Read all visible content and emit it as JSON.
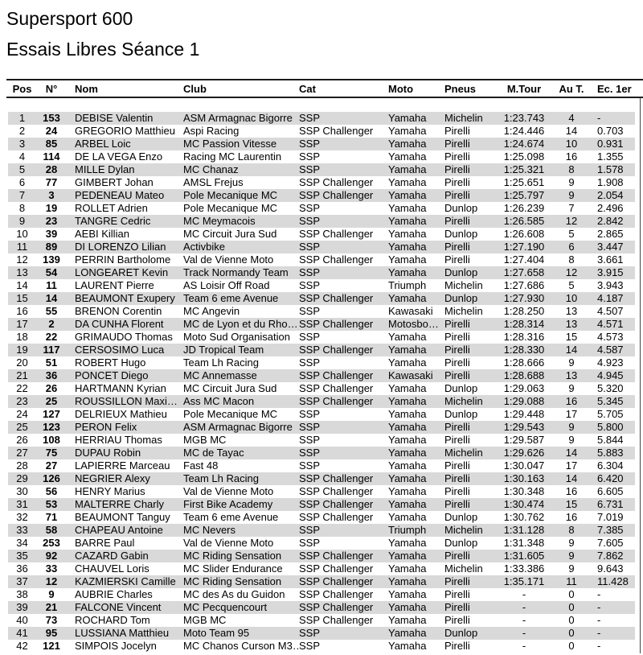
{
  "header": {
    "title_line1": "Supersport 600",
    "title_line2": "Essais Libres Séance 1"
  },
  "colors": {
    "stripe_gray": "#d9d9d9",
    "rule_black": "#1c1c1c"
  },
  "table": {
    "columns": [
      "Pos",
      "N°",
      "Nom",
      "Club",
      "Cat",
      "Moto",
      "Pneus",
      "M.Tour",
      "Au T.",
      "Ec. 1er"
    ],
    "rows": [
      {
        "pos": "1",
        "num": "153",
        "nom": "DEBISE Valentin",
        "club": "ASM Armagnac Bigorre",
        "cat": "SSP",
        "moto": "Yamaha",
        "pneus": "Michelin",
        "mtour": "1:23.743",
        "aut": "4",
        "ec": "-"
      },
      {
        "pos": "2",
        "num": "24",
        "nom": "GREGORIO Matthieu",
        "club": "Aspi Racing",
        "cat": "SSP Challenger",
        "moto": "Yamaha",
        "pneus": "Pirelli",
        "mtour": "1:24.446",
        "aut": "14",
        "ec": "0.703"
      },
      {
        "pos": "3",
        "num": "85",
        "nom": "ARBEL Loic",
        "club": "MC Passion Vitesse",
        "cat": "SSP",
        "moto": "Yamaha",
        "pneus": "Pirelli",
        "mtour": "1:24.674",
        "aut": "10",
        "ec": "0.931"
      },
      {
        "pos": "4",
        "num": "114",
        "nom": "DE LA VEGA Enzo",
        "club": "Racing MC Laurentin",
        "cat": "SSP",
        "moto": "Yamaha",
        "pneus": "Pirelli",
        "mtour": "1:25.098",
        "aut": "16",
        "ec": "1.355"
      },
      {
        "pos": "5",
        "num": "28",
        "nom": "MILLE Dylan",
        "club": "MC Chanaz",
        "cat": "SSP",
        "moto": "Yamaha",
        "pneus": "Pirelli",
        "mtour": "1:25.321",
        "aut": "8",
        "ec": "1.578"
      },
      {
        "pos": "6",
        "num": "77",
        "nom": "GIMBERT Johan",
        "club": "AMSL Frejus",
        "cat": "SSP Challenger",
        "moto": "Yamaha",
        "pneus": "Pirelli",
        "mtour": "1:25.651",
        "aut": "9",
        "ec": "1.908"
      },
      {
        "pos": "7",
        "num": "3",
        "nom": "PEDENEAU Mateo",
        "club": "Pole Mecanique MC",
        "cat": "SSP Challenger",
        "moto": "Yamaha",
        "pneus": "Pirelli",
        "mtour": "1:25.797",
        "aut": "9",
        "ec": "2.054"
      },
      {
        "pos": "8",
        "num": "19",
        "nom": "ROLLET Adrien",
        "club": "Pole Mecanique MC",
        "cat": "SSP",
        "moto": "Yamaha",
        "pneus": "Dunlop",
        "mtour": "1:26.239",
        "aut": "7",
        "ec": "2.496"
      },
      {
        "pos": "9",
        "num": "23",
        "nom": "TANGRE Cedric",
        "club": "MC Meymacois",
        "cat": "SSP",
        "moto": "Yamaha",
        "pneus": "Pirelli",
        "mtour": "1:26.585",
        "aut": "12",
        "ec": "2.842"
      },
      {
        "pos": "10",
        "num": "39",
        "nom": "AEBI Killian",
        "club": "MC Circuit Jura Sud",
        "cat": "SSP Challenger",
        "moto": "Yamaha",
        "pneus": "Dunlop",
        "mtour": "1:26.608",
        "aut": "5",
        "ec": "2.865"
      },
      {
        "pos": "11",
        "num": "89",
        "nom": "DI LORENZO Lilian",
        "club": "Activbike",
        "cat": "SSP",
        "moto": "Yamaha",
        "pneus": "Pirelli",
        "mtour": "1:27.190",
        "aut": "6",
        "ec": "3.447"
      },
      {
        "pos": "12",
        "num": "139",
        "nom": "PERRIN Bartholome",
        "club": "Val de Vienne Moto",
        "cat": "SSP Challenger",
        "moto": "Yamaha",
        "pneus": "Pirelli",
        "mtour": "1:27.404",
        "aut": "8",
        "ec": "3.661"
      },
      {
        "pos": "13",
        "num": "54",
        "nom": "LONGEARET Kevin",
        "club": "Track Normandy Team",
        "cat": "SSP",
        "moto": "Yamaha",
        "pneus": "Dunlop",
        "mtour": "1:27.658",
        "aut": "12",
        "ec": "3.915"
      },
      {
        "pos": "14",
        "num": "11",
        "nom": "LAURENT Pierre",
        "club": "AS Loisir Off Road",
        "cat": "SSP",
        "moto": "Triumph",
        "pneus": "Michelin",
        "mtour": "1:27.686",
        "aut": "5",
        "ec": "3.943"
      },
      {
        "pos": "15",
        "num": "14",
        "nom": "BEAUMONT Exupery",
        "club": "Team 6 eme Avenue",
        "cat": "SSP Challenger",
        "moto": "Yamaha",
        "pneus": "Dunlop",
        "mtour": "1:27.930",
        "aut": "10",
        "ec": "4.187"
      },
      {
        "pos": "16",
        "num": "55",
        "nom": "BRENON Corentin",
        "club": "MC Angevin",
        "cat": "SSP",
        "moto": "Kawasaki",
        "pneus": "Michelin",
        "mtour": "1:28.250",
        "aut": "13",
        "ec": "4.507"
      },
      {
        "pos": "17",
        "num": "2",
        "nom": "DA CUNHA Florent",
        "club": "MC de Lyon et du Rho…",
        "cat": "SSP Challenger",
        "moto": "Motosbo…",
        "pneus": "Pirelli",
        "mtour": "1:28.314",
        "aut": "13",
        "ec": "4.571"
      },
      {
        "pos": "18",
        "num": "22",
        "nom": "GRIMAUDO Thomas",
        "club": "Moto Sud Organisation",
        "cat": "SSP",
        "moto": "Yamaha",
        "pneus": "Pirelli",
        "mtour": "1:28.316",
        "aut": "15",
        "ec": "4.573"
      },
      {
        "pos": "19",
        "num": "117",
        "nom": "CERSOSIMO Luca",
        "club": "JD Tropical Team",
        "cat": "SSP Challenger",
        "moto": "Yamaha",
        "pneus": "Pirelli",
        "mtour": "1:28.330",
        "aut": "14",
        "ec": "4.587"
      },
      {
        "pos": "20",
        "num": "51",
        "nom": "ROBERT Hugo",
        "club": "Team Lh Racing",
        "cat": "SSP",
        "moto": "Yamaha",
        "pneus": "Pirelli",
        "mtour": "1:28.666",
        "aut": "9",
        "ec": "4.923"
      },
      {
        "pos": "21",
        "num": "36",
        "nom": "PONCET Diego",
        "club": "MC Annemasse",
        "cat": "SSP Challenger",
        "moto": "Kawasaki",
        "pneus": "Pirelli",
        "mtour": "1:28.688",
        "aut": "13",
        "ec": "4.945"
      },
      {
        "pos": "22",
        "num": "26",
        "nom": "HARTMANN Kyrian",
        "club": "MC Circuit Jura Sud",
        "cat": "SSP Challenger",
        "moto": "Yamaha",
        "pneus": "Dunlop",
        "mtour": "1:29.063",
        "aut": "9",
        "ec": "5.320"
      },
      {
        "pos": "23",
        "num": "25",
        "nom": "ROUSSILLON  Maxi…",
        "club": "Ass MC Macon",
        "cat": "SSP Challenger",
        "moto": "Yamaha",
        "pneus": "Michelin",
        "mtour": "1:29.088",
        "aut": "16",
        "ec": "5.345"
      },
      {
        "pos": "24",
        "num": "127",
        "nom": "DELRIEUX Mathieu",
        "club": "Pole Mecanique MC",
        "cat": "SSP",
        "moto": "Yamaha",
        "pneus": "Dunlop",
        "mtour": "1:29.448",
        "aut": "17",
        "ec": "5.705"
      },
      {
        "pos": "25",
        "num": "123",
        "nom": "PERON Felix",
        "club": "ASM Armagnac Bigorre",
        "cat": "SSP",
        "moto": "Yamaha",
        "pneus": "Pirelli",
        "mtour": "1:29.543",
        "aut": "9",
        "ec": "5.800"
      },
      {
        "pos": "26",
        "num": "108",
        "nom": "HERRIAU Thomas",
        "club": "MGB MC",
        "cat": "SSP",
        "moto": "Yamaha",
        "pneus": "Pirelli",
        "mtour": "1:29.587",
        "aut": "9",
        "ec": "5.844"
      },
      {
        "pos": "27",
        "num": "75",
        "nom": "DUPAU Robin",
        "club": "MC de Tayac",
        "cat": "SSP",
        "moto": "Yamaha",
        "pneus": "Michelin",
        "mtour": "1:29.626",
        "aut": "14",
        "ec": "5.883"
      },
      {
        "pos": "28",
        "num": "27",
        "nom": "LAPIERRE Marceau",
        "club": "Fast 48",
        "cat": "SSP",
        "moto": "Yamaha",
        "pneus": "Pirelli",
        "mtour": "1:30.047",
        "aut": "17",
        "ec": "6.304"
      },
      {
        "pos": "29",
        "num": "126",
        "nom": "NEGRIER Alexy",
        "club": "Team Lh Racing",
        "cat": "SSP Challenger",
        "moto": "Yamaha",
        "pneus": "Pirelli",
        "mtour": "1:30.163",
        "aut": "14",
        "ec": "6.420"
      },
      {
        "pos": "30",
        "num": "56",
        "nom": "HENRY Marius",
        "club": "Val de Vienne Moto",
        "cat": "SSP Challenger",
        "moto": "Yamaha",
        "pneus": "Pirelli",
        "mtour": "1:30.348",
        "aut": "16",
        "ec": "6.605"
      },
      {
        "pos": "31",
        "num": "53",
        "nom": "MALTERRE Charly",
        "club": "First Bike Academy",
        "cat": "SSP Challenger",
        "moto": "Yamaha",
        "pneus": "Pirelli",
        "mtour": "1:30.474",
        "aut": "15",
        "ec": "6.731"
      },
      {
        "pos": "32",
        "num": "71",
        "nom": "BEAUMONT Tanguy",
        "club": "Team 6 eme Avenue",
        "cat": "SSP Challenger",
        "moto": "Yamaha",
        "pneus": "Dunlop",
        "mtour": "1:30.762",
        "aut": "16",
        "ec": "7.019"
      },
      {
        "pos": "33",
        "num": "58",
        "nom": "CHAPEAU Antoine",
        "club": "MC Nevers",
        "cat": "SSP",
        "moto": "Triumph",
        "pneus": "Michelin",
        "mtour": "1:31.128",
        "aut": "8",
        "ec": "7.385"
      },
      {
        "pos": "34",
        "num": "253",
        "nom": "BARRE Paul",
        "club": "Val de Vienne Moto",
        "cat": "SSP",
        "moto": "Yamaha",
        "pneus": "Dunlop",
        "mtour": "1:31.348",
        "aut": "9",
        "ec": "7.605"
      },
      {
        "pos": "35",
        "num": "92",
        "nom": "CAZARD Gabin",
        "club": "MC Riding Sensation",
        "cat": "SSP Challenger",
        "moto": "Yamaha",
        "pneus": "Pirelli",
        "mtour": "1:31.605",
        "aut": "9",
        "ec": "7.862"
      },
      {
        "pos": "36",
        "num": "33",
        "nom": "CHAUVEL Loris",
        "club": "MC Slider Endurance",
        "cat": "SSP Challenger",
        "moto": "Yamaha",
        "pneus": "Michelin",
        "mtour": "1:33.386",
        "aut": "9",
        "ec": "9.643"
      },
      {
        "pos": "37",
        "num": "12",
        "nom": "KAZMIERSKI Camille",
        "club": "MC Riding Sensation",
        "cat": "SSP Challenger",
        "moto": "Yamaha",
        "pneus": "Pirelli",
        "mtour": "1:35.171",
        "aut": "11",
        "ec": "11.428"
      },
      {
        "pos": "38",
        "num": "9",
        "nom": "AUBRIE Charles",
        "club": "MC des As du Guidon",
        "cat": "SSP Challenger",
        "moto": "Yamaha",
        "pneus": "Pirelli",
        "mtour": "-",
        "aut": "0",
        "ec": "-"
      },
      {
        "pos": "39",
        "num": "21",
        "nom": "FALCONE Vincent",
        "club": "MC Pecquencourt",
        "cat": "SSP Challenger",
        "moto": "Yamaha",
        "pneus": "Pirelli",
        "mtour": "-",
        "aut": "0",
        "ec": "-"
      },
      {
        "pos": "40",
        "num": "73",
        "nom": "ROCHARD Tom",
        "club": "MGB MC",
        "cat": "SSP Challenger",
        "moto": "Yamaha",
        "pneus": "Pirelli",
        "mtour": "-",
        "aut": "0",
        "ec": "-"
      },
      {
        "pos": "41",
        "num": "95",
        "nom": "LUSSIANA Matthieu",
        "club": "Moto Team 95",
        "cat": "SSP",
        "moto": "Yamaha",
        "pneus": "Dunlop",
        "mtour": "-",
        "aut": "0",
        "ec": "-"
      },
      {
        "pos": "42",
        "num": "121",
        "nom": "SIMPOIS Jocelyn",
        "club": "MC Chanos Curson M3…",
        "cat": "SSP",
        "moto": "Yamaha",
        "pneus": "Pirelli",
        "mtour": "-",
        "aut": "0",
        "ec": "-"
      }
    ]
  }
}
